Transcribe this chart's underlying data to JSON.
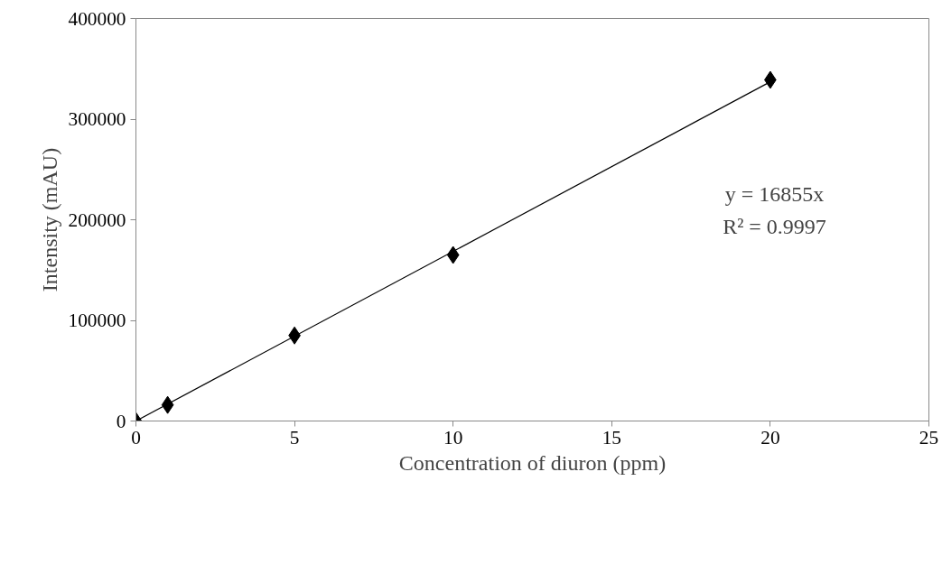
{
  "chart_data": {
    "type": "scatter",
    "xlabel": "Concentration of diuron (ppm)",
    "ylabel": "Intensity (mAU)",
    "xlim": [
      0,
      25
    ],
    "xticks": [
      0,
      5,
      10,
      15,
      20,
      25
    ],
    "ylim": [
      0,
      400000
    ],
    "yticks": [
      0,
      100000,
      200000,
      300000,
      400000
    ],
    "grid": false,
    "series": [
      {
        "type": "scatter",
        "color": "#000000",
        "marker": "diamond",
        "x": [
          0,
          1,
          5,
          10,
          20
        ],
        "values": [
          0,
          16000,
          85000,
          165000,
          339000
        ]
      },
      {
        "type": "line",
        "color": "#000000",
        "line_style": "solid",
        "marker": "none",
        "x": [
          0,
          20
        ],
        "values": [
          0,
          337100
        ]
      }
    ],
    "annotations": [
      "y = 16855x",
      "R² = 0.9997"
    ]
  }
}
